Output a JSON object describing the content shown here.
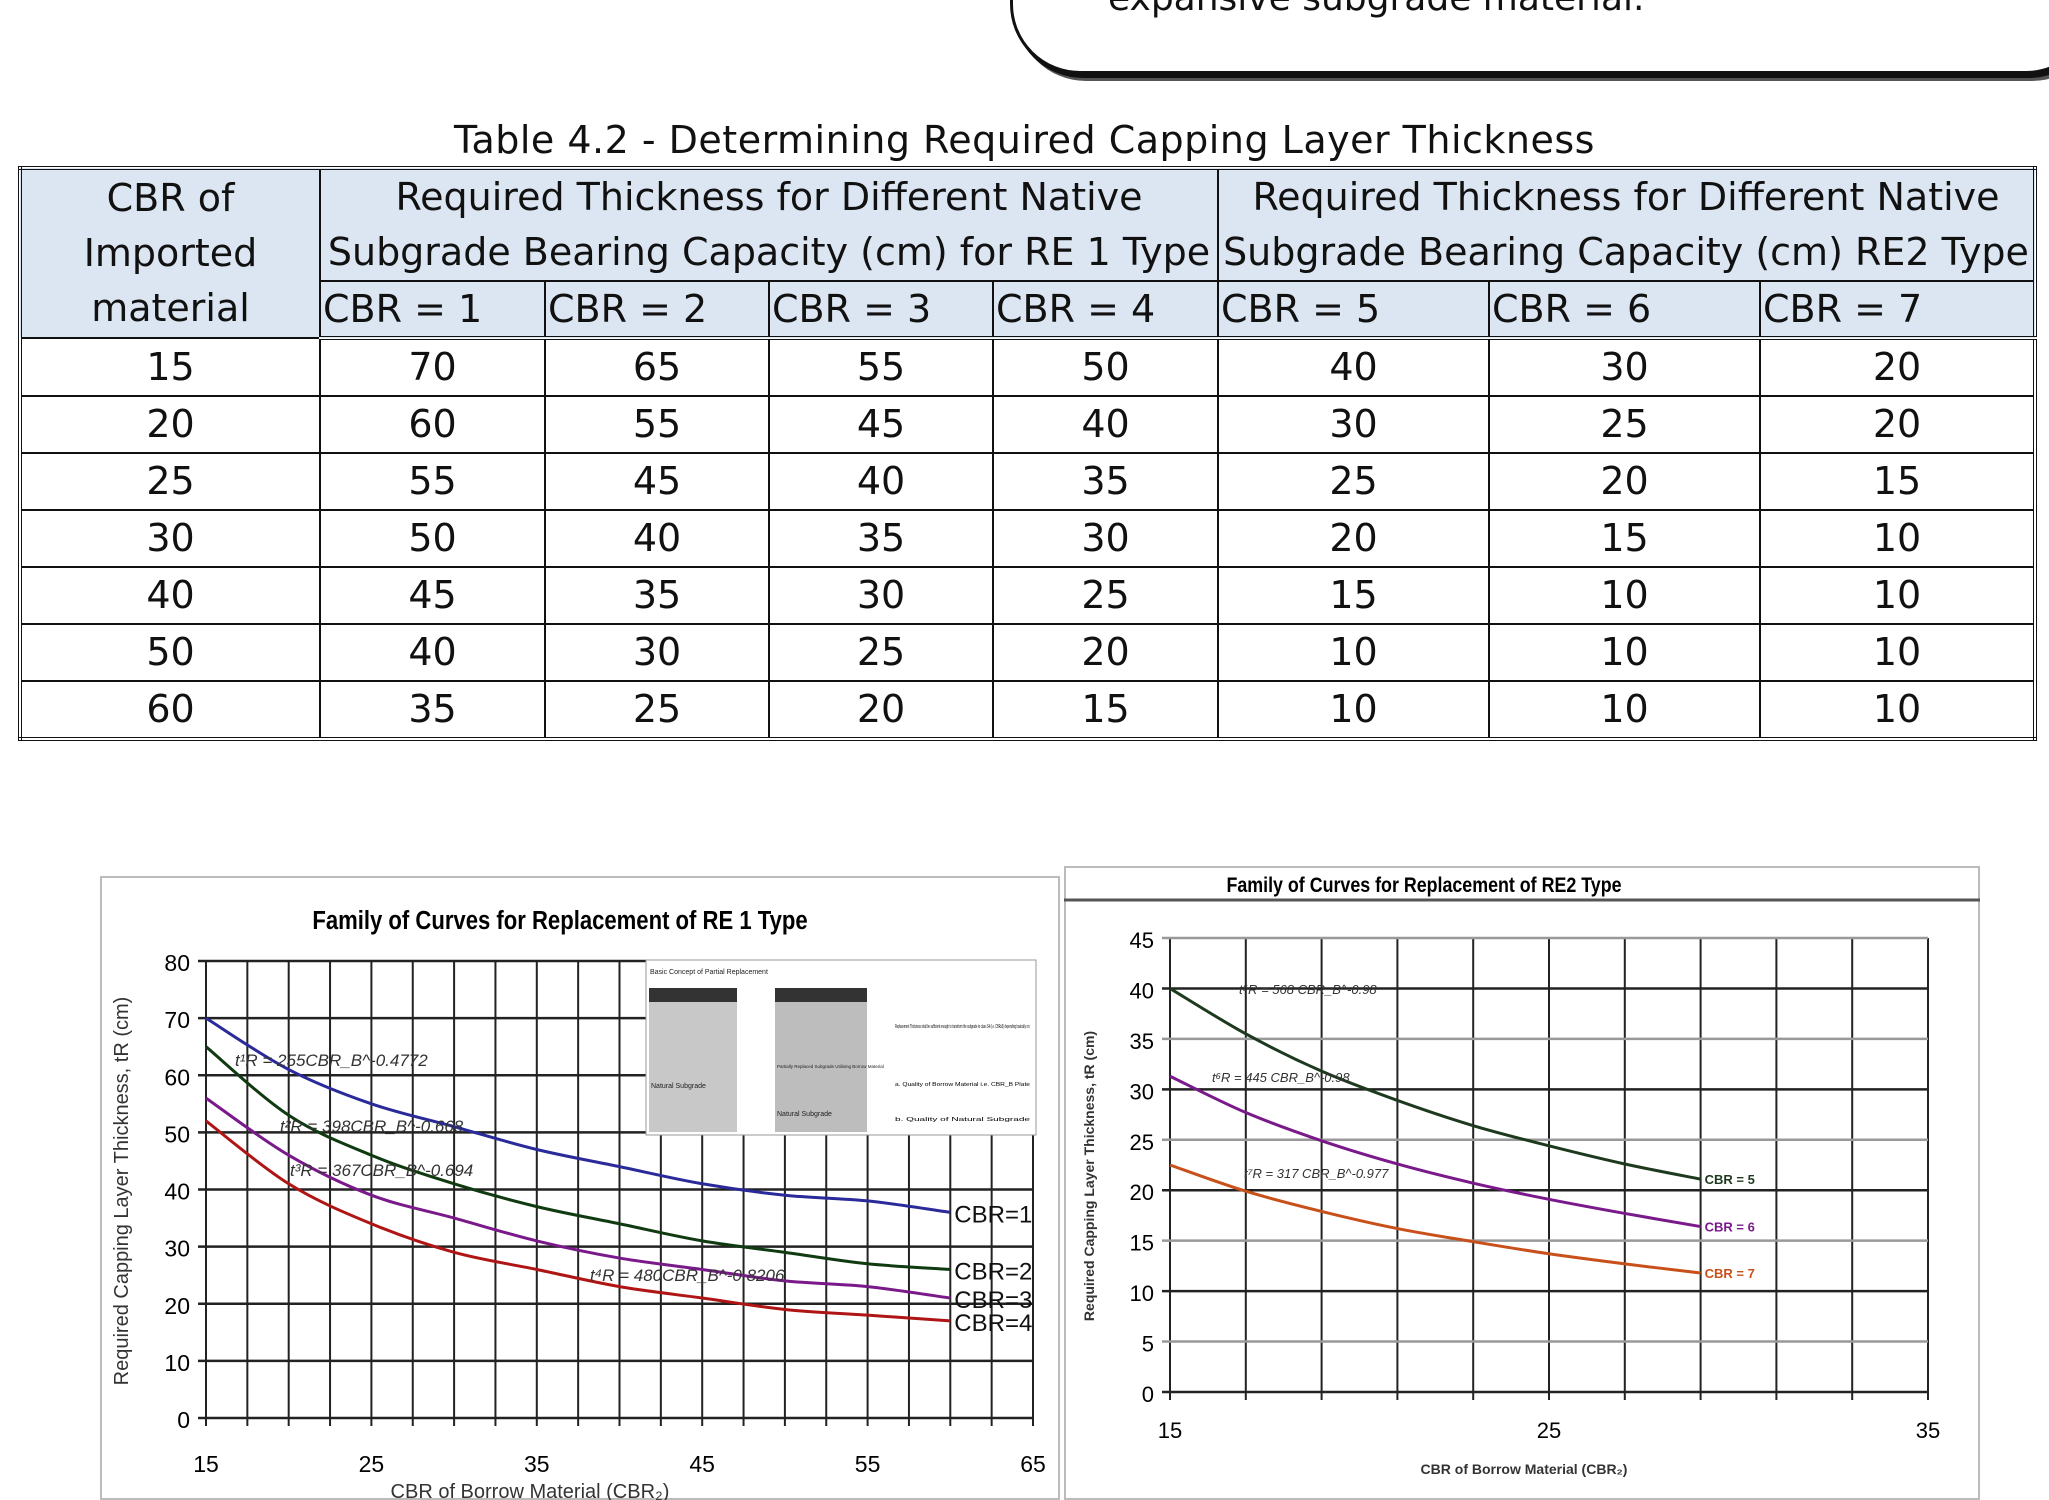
{
  "callout": {
    "text": "expansive subgrade material."
  },
  "table": {
    "title": "Table 4.2 - Determining Required Capping Layer Thickness",
    "col0_header": "CBR of Imported material",
    "group1_header": "Required Thickness for Different Native Subgrade Bearing Capacity (cm) for RE 1 Type",
    "group2_header": "Required Thickness for Different Native Subgrade Bearing Capacity (cm) RE2 Type",
    "sub_headers": [
      "CBR = 1",
      "CBR = 2",
      "CBR = 3",
      "CBR = 4",
      "CBR = 5",
      "CBR = 6",
      "CBR = 7"
    ],
    "rows": [
      [
        "15",
        "70",
        "65",
        "55",
        "50",
        "40",
        "30",
        "20"
      ],
      [
        "20",
        "60",
        "55",
        "45",
        "40",
        "30",
        "25",
        "20"
      ],
      [
        "25",
        "55",
        "45",
        "40",
        "35",
        "25",
        "20",
        "15"
      ],
      [
        "30",
        "50",
        "40",
        "35",
        "30",
        "20",
        "15",
        "10"
      ],
      [
        "40",
        "45",
        "35",
        "30",
        "25",
        "15",
        "10",
        "10"
      ],
      [
        "50",
        "40",
        "30",
        "25",
        "20",
        "10",
        "10",
        "10"
      ],
      [
        "60",
        "35",
        "25",
        "20",
        "15",
        "10",
        "10",
        "10"
      ]
    ],
    "header_bg": "#dce6f2"
  },
  "chart_data": [
    {
      "type": "line",
      "title": "Family of Curves for Replacement of RE 1 Type",
      "xlabel": "CBR of Borrow Material (CBR₂)",
      "ylabel": "Required Capping Layer Thickness, tR (cm)",
      "xlim": [
        15,
        65
      ],
      "ylim": [
        0,
        80
      ],
      "xticks": [
        15,
        25,
        35,
        45,
        55,
        65
      ],
      "yticks": [
        0,
        10,
        20,
        30,
        40,
        50,
        60,
        70,
        80
      ],
      "grid": true,
      "x": [
        15,
        20,
        25,
        30,
        35,
        40,
        45,
        50,
        55,
        60
      ],
      "series": [
        {
          "name": "CBR=1",
          "color": "#2a2a9a",
          "values": [
            70,
            61,
            55,
            51,
            47,
            44,
            41,
            39,
            38,
            36
          ],
          "equation": "t¹R = 255CBR_B^-0.4772"
        },
        {
          "name": "CBR=2",
          "color": "#103a10",
          "values": [
            65,
            53,
            46,
            41,
            37,
            34,
            31,
            29,
            27,
            26
          ],
          "equation": "t²R = 398CBR_B^-0.668"
        },
        {
          "name": "CBR=3",
          "color": "#7a1a8a",
          "values": [
            56,
            46,
            39,
            35,
            31,
            28,
            26,
            24,
            23,
            21
          ],
          "equation": "t³R = 367CBR_B^-0.694"
        },
        {
          "name": "CBR=4",
          "color": "#b01515",
          "values": [
            52,
            41,
            34,
            29,
            26,
            23,
            21,
            19,
            18,
            17
          ],
          "equation": "t⁴R = 480CBR_B^-0.8206"
        }
      ],
      "inset": {
        "title": "Basic Concept of Partial Replacement",
        "labels": [
          "Natural Subgrade",
          "Partially Replaced Subgrade Utilising Borrow Material",
          "Natural Subgrade",
          "Replacement Thickness shall be sufficient enough to transform the subgrade to class S4 (i.e. CBR≥5) depending basically on:",
          "a. Quality of Borrow Material i.e. CBR_B Plate",
          "b. Quality of Natural Subgrade"
        ]
      }
    },
    {
      "type": "line",
      "title": "Family of Curves for Replacement of RE2 Type",
      "xlabel": "CBR of Borrow Material (CBR₂)",
      "ylabel": "Required Capping Layer Thickness, tR (cm)",
      "xlim": [
        15,
        35
      ],
      "ylim": [
        0,
        45
      ],
      "xticks": [
        15,
        25,
        35
      ],
      "yticks": [
        0,
        5,
        10,
        15,
        20,
        25,
        30,
        35,
        40,
        45
      ],
      "grid": true,
      "x": [
        15,
        17,
        19,
        21,
        23,
        25,
        27,
        29
      ],
      "series": [
        {
          "name": "CBR = 5",
          "color": "#1e3a1e",
          "values": [
            40,
            35.5,
            31.8,
            28.9,
            26.4,
            24.4,
            22.6,
            21.1
          ],
          "equation": "t⁵R = 568 CBR_B^-0.98"
        },
        {
          "name": "CBR = 6",
          "color": "#7a1a8a",
          "values": [
            31.3,
            27.7,
            24.9,
            22.6,
            20.7,
            19.1,
            17.7,
            16.4
          ],
          "equation": "t⁶R = 445 CBR_B^-0.98"
        },
        {
          "name": "CBR = 7",
          "color": "#c8501a",
          "values": [
            22.5,
            19.9,
            17.9,
            16.2,
            14.9,
            13.7,
            12.7,
            11.8
          ],
          "equation": "t⁷R = 317 CBR_B^-0.977"
        }
      ]
    }
  ]
}
